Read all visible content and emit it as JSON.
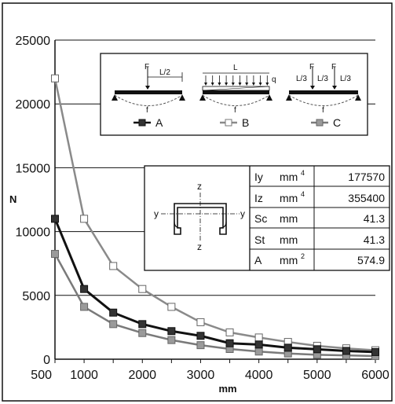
{
  "chart_data": {
    "type": "line",
    "x": [
      500,
      1000,
      1500,
      2000,
      2500,
      3000,
      3500,
      4000,
      4500,
      5000,
      5500,
      6000
    ],
    "series": [
      {
        "name": "A",
        "color": "#111111",
        "marker_fill": "#333333",
        "values": [
          11000,
          5500,
          3650,
          2750,
          2200,
          1830,
          1250,
          1150,
          900,
          780,
          650,
          560
        ]
      },
      {
        "name": "B",
        "color": "#8a8a8a",
        "marker_fill": "#ffffff",
        "values": [
          22000,
          11000,
          7300,
          5500,
          4100,
          2900,
          2100,
          1700,
          1350,
          1050,
          850,
          700
        ]
      },
      {
        "name": "C",
        "color": "#7a7a7a",
        "marker_fill": "#9a9a9a",
        "values": [
          8250,
          4100,
          2750,
          2050,
          1500,
          1100,
          800,
          600,
          450,
          350,
          300,
          250
        ]
      }
    ],
    "xlabel": "mm",
    "ylabel": "N",
    "xticks": [
      "500",
      "1000",
      "1500",
      "2000",
      "2500",
      "3000",
      "3500",
      "4000",
      "4500",
      "5000",
      "5500",
      "6000"
    ],
    "xtick_labels_shown": [
      "500",
      "1000",
      "2000",
      "3000",
      "4000",
      "5000",
      "6000"
    ],
    "yticks": [
      "0",
      "5000",
      "10000",
      "15000",
      "20000",
      "25000"
    ],
    "xlim": [
      500,
      6000
    ],
    "ylim": [
      0,
      25000
    ],
    "grid": "horizontal"
  },
  "legend": {
    "A": "A",
    "B": "B",
    "C": "C"
  },
  "diagrams": {
    "a_force": "F",
    "a_dist": "L/2",
    "a_deflection": "f",
    "b_length": "L",
    "b_load": "q",
    "b_deflection": "f",
    "c_force1": "F",
    "c_force2": "F",
    "c_dist1": "L/3",
    "c_dist2": "L/3",
    "c_dist3": "L/3",
    "c_deflection": "f"
  },
  "section_axes": {
    "z_top": "z",
    "z_bottom": "z",
    "y_left": "y",
    "y_right": "y"
  },
  "properties": [
    {
      "name": "Iy",
      "unit": "mm",
      "sup": "4",
      "value": "177570"
    },
    {
      "name": "Iz",
      "unit": "mm",
      "sup": "4",
      "value": "355400"
    },
    {
      "name": "Sc",
      "unit": "mm",
      "sup": "",
      "value": "41.3"
    },
    {
      "name": "St",
      "unit": "mm",
      "sup": "",
      "value": "41.3"
    },
    {
      "name": "A",
      "unit": "mm",
      "sup": "2",
      "value": "574.9"
    }
  ]
}
